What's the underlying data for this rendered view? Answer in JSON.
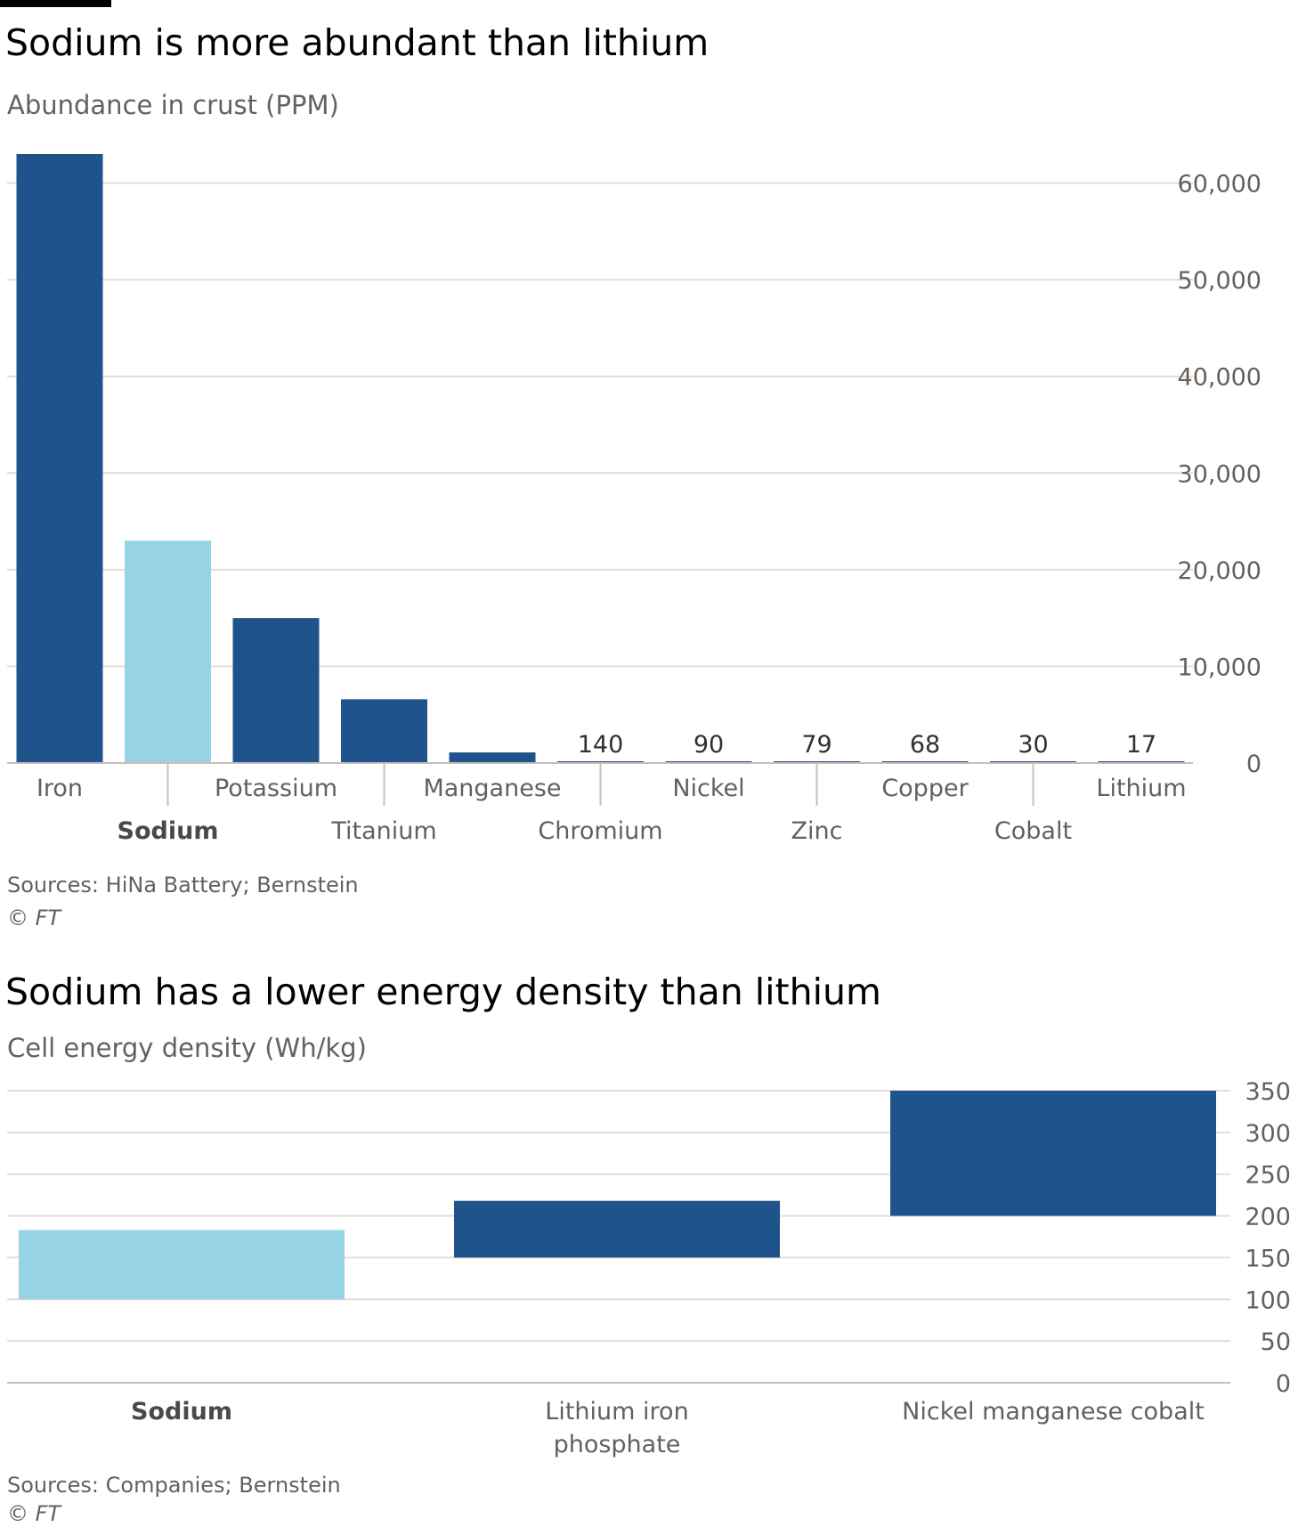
{
  "colors": {
    "highlight": "#96d3e5",
    "bar": "#1f538b",
    "grid": "#e6dcd3",
    "axis": "#c9bfb7",
    "tick_text": "#66605c",
    "label_text": "#33302e"
  },
  "chart1": {
    "title": "Sodium is more abundant than lithium",
    "subtitle": "Abundance in crust (PPM)",
    "source": "Sources: HiNa Battery; Bernstein",
    "credit": "© FT"
  },
  "chart2": {
    "title": "Sodium has a lower energy density than lithium",
    "subtitle": "Cell energy density (Wh/kg)",
    "source": "Sources: Companies; Bernstein",
    "credit": "© FT"
  },
  "chart_data": [
    {
      "type": "bar",
      "title": "Sodium is more abundant than lithium",
      "subtitle": "Abundance in crust (PPM)",
      "ylabel": "",
      "xlabel": "",
      "categories": [
        "Iron",
        "Sodium",
        "Potassium",
        "Titanium",
        "Manganese",
        "Chromium",
        "Nickel",
        "Zinc",
        "Copper",
        "Cobalt",
        "Lithium"
      ],
      "values": [
        63000,
        23000,
        15000,
        6600,
        1100,
        140,
        90,
        79,
        68,
        30,
        17
      ],
      "data_labels": [
        null,
        null,
        null,
        null,
        null,
        "140",
        "90",
        "79",
        "68",
        "30",
        "17"
      ],
      "highlight": "Sodium",
      "ylim": [
        0,
        63000
      ],
      "yticks": [
        0,
        10000,
        20000,
        30000,
        40000,
        50000,
        60000
      ],
      "ytick_labels": [
        "0",
        "10,000",
        "20,000",
        "30,000",
        "40,000",
        "50,000",
        "60,000"
      ],
      "y_axis_side": "right",
      "grid": true,
      "legend": "none"
    },
    {
      "type": "bar",
      "subtype": "range",
      "title": "Sodium has a lower energy density than lithium",
      "subtitle": "Cell energy density (Wh/kg)",
      "ylabel": "",
      "xlabel": "",
      "categories": [
        "Sodium",
        "Lithium iron phosphate",
        "Nickel manganese cobalt"
      ],
      "category_lines": [
        [
          "Sodium"
        ],
        [
          "Lithium iron",
          "phosphate"
        ],
        [
          "Nickel manganese cobalt"
        ]
      ],
      "ranges": [
        [
          100,
          183
        ],
        [
          150,
          218
        ],
        [
          200,
          350
        ]
      ],
      "highlight": "Sodium",
      "ylim": [
        0,
        350
      ],
      "yticks": [
        0,
        50,
        100,
        150,
        200,
        250,
        300,
        350
      ],
      "ytick_labels": [
        "0",
        "50",
        "100",
        "150",
        "200",
        "250",
        "300",
        "350"
      ],
      "y_axis_side": "right",
      "grid": true,
      "legend": "none"
    }
  ]
}
